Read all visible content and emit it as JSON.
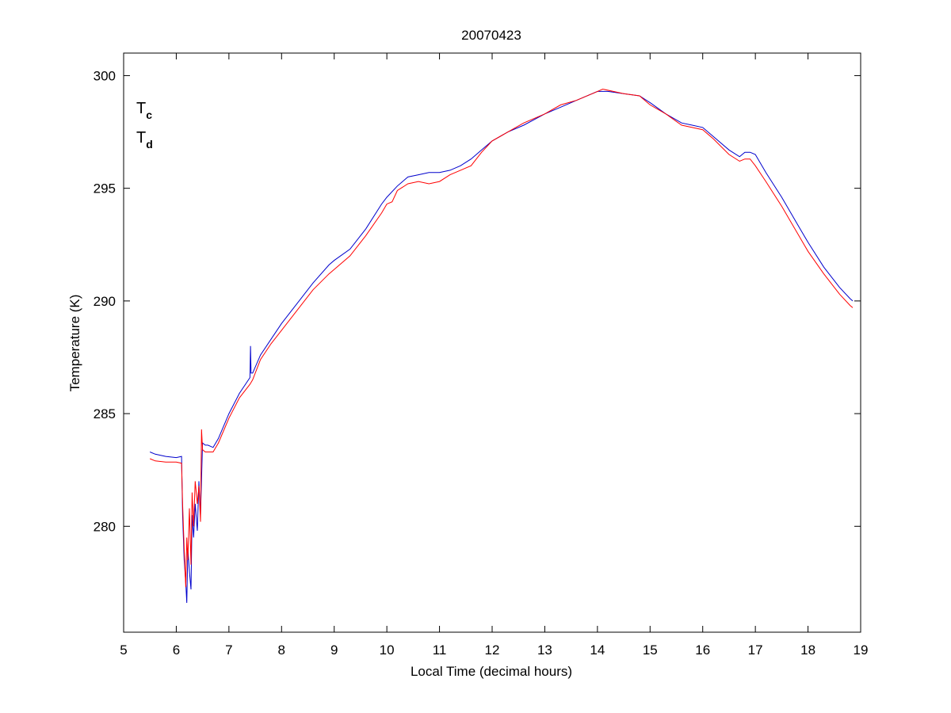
{
  "chart_data": {
    "type": "line",
    "title": "20070423",
    "xlabel": "Local Time (decimal hours)",
    "ylabel": "Temperature (K)",
    "xlim": [
      5,
      19
    ],
    "ylim": [
      275.3,
      301
    ],
    "xticks": [
      5,
      6,
      7,
      8,
      9,
      10,
      11,
      12,
      13,
      14,
      15,
      16,
      17,
      18,
      19
    ],
    "yticks": [
      280,
      285,
      290,
      295,
      300
    ],
    "grid": false,
    "legend_position": "top-left",
    "series": [
      {
        "name": "Tc",
        "legend_main": "T",
        "legend_sub": "c",
        "color": "#0000cc",
        "x": [
          5.5,
          5.6,
          5.8,
          6.0,
          6.1,
          6.12,
          6.15,
          6.18,
          6.2,
          6.22,
          6.25,
          6.28,
          6.3,
          6.33,
          6.36,
          6.4,
          6.43,
          6.46,
          6.5,
          6.55,
          6.6,
          6.7,
          6.8,
          7.0,
          7.2,
          7.4,
          7.41,
          7.42,
          7.45,
          7.6,
          7.8,
          8.0,
          8.3,
          8.6,
          8.9,
          9.0,
          9.3,
          9.6,
          9.9,
          10.0,
          10.2,
          10.4,
          10.6,
          10.8,
          11.0,
          11.2,
          11.4,
          11.6,
          11.8,
          12.0,
          12.3,
          12.6,
          13.0,
          13.3,
          13.6,
          14.0,
          14.2,
          14.5,
          14.8,
          15.0,
          15.3,
          15.6,
          15.8,
          16.0,
          16.2,
          16.5,
          16.7,
          16.8,
          16.9,
          17.0,
          17.2,
          17.5,
          17.8,
          18.0,
          18.3,
          18.6,
          18.8,
          18.85
        ],
        "y": [
          283.3,
          283.2,
          283.1,
          283.05,
          283.1,
          280.5,
          278.5,
          277.5,
          276.6,
          279.0,
          278.0,
          277.2,
          280.5,
          279.5,
          281.0,
          279.8,
          282.0,
          280.5,
          283.7,
          283.6,
          283.6,
          283.5,
          283.9,
          285.0,
          285.9,
          286.6,
          288.0,
          286.8,
          286.8,
          287.6,
          288.3,
          289.0,
          289.9,
          290.8,
          291.6,
          291.8,
          292.3,
          293.2,
          294.3,
          294.6,
          295.1,
          295.5,
          295.6,
          295.7,
          295.7,
          295.8,
          296.0,
          296.3,
          296.7,
          297.1,
          297.5,
          297.8,
          298.3,
          298.6,
          298.9,
          299.3,
          299.3,
          299.2,
          299.1,
          298.8,
          298.3,
          297.9,
          297.8,
          297.7,
          297.3,
          296.7,
          296.4,
          296.6,
          296.6,
          296.5,
          295.7,
          294.6,
          293.4,
          292.6,
          291.5,
          290.6,
          290.1,
          290.0
        ]
      },
      {
        "name": "Td",
        "legend_main": "T",
        "legend_sub": "d",
        "color": "#ff0000",
        "x": [
          5.5,
          5.6,
          5.8,
          6.0,
          6.1,
          6.12,
          6.15,
          6.18,
          6.2,
          6.22,
          6.25,
          6.28,
          6.3,
          6.33,
          6.36,
          6.4,
          6.43,
          6.46,
          6.48,
          6.5,
          6.55,
          6.6,
          6.7,
          6.8,
          7.0,
          7.2,
          7.4,
          7.45,
          7.6,
          7.8,
          8.0,
          8.3,
          8.6,
          8.9,
          9.0,
          9.3,
          9.6,
          9.9,
          10.0,
          10.1,
          10.2,
          10.4,
          10.6,
          10.8,
          11.0,
          11.2,
          11.4,
          11.6,
          11.8,
          12.0,
          12.3,
          12.6,
          13.0,
          13.3,
          13.6,
          14.0,
          14.1,
          14.5,
          14.8,
          15.0,
          15.3,
          15.6,
          15.8,
          16.0,
          16.2,
          16.5,
          16.7,
          16.8,
          16.9,
          17.0,
          17.2,
          17.5,
          17.8,
          18.0,
          18.3,
          18.6,
          18.8,
          18.85
        ],
        "y": [
          283.0,
          282.9,
          282.85,
          282.85,
          282.8,
          281.0,
          279.0,
          277.3,
          279.5,
          278.5,
          280.8,
          278.3,
          281.5,
          280.0,
          282.0,
          281.0,
          281.8,
          280.2,
          284.3,
          283.4,
          283.3,
          283.3,
          283.3,
          283.7,
          284.8,
          285.7,
          286.3,
          286.5,
          287.4,
          288.1,
          288.7,
          289.6,
          290.5,
          291.2,
          291.4,
          292.0,
          292.9,
          293.9,
          294.3,
          294.4,
          294.9,
          295.2,
          295.3,
          295.2,
          295.3,
          295.6,
          295.8,
          296.0,
          296.6,
          297.1,
          297.5,
          297.9,
          298.3,
          298.7,
          298.9,
          299.3,
          299.4,
          299.2,
          299.1,
          298.7,
          298.3,
          297.8,
          297.7,
          297.6,
          297.2,
          296.5,
          296.2,
          296.3,
          296.3,
          296.0,
          295.3,
          294.2,
          293.0,
          292.2,
          291.2,
          290.3,
          289.8,
          289.7
        ]
      }
    ]
  }
}
